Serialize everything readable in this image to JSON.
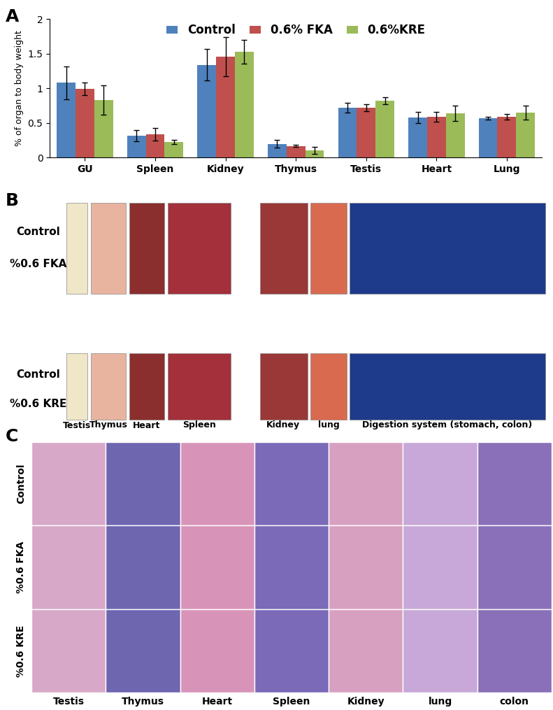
{
  "chart_data": {
    "type": "bar",
    "categories": [
      "GU",
      "Spleen",
      "Kidney",
      "Thymus",
      "Testis",
      "Heart",
      "Lung"
    ],
    "y_label": "% of organ to body weight",
    "ylim": [
      0,
      2
    ],
    "yticks": [
      0,
      0.5,
      1,
      1.5,
      2
    ],
    "grid": false,
    "legend": "upper center",
    "series": [
      {
        "name": "Control",
        "color": "#4f81bd",
        "values": [
          1.08,
          0.32,
          1.34,
          0.2,
          0.72,
          0.58,
          0.57
        ],
        "errors": [
          0.24,
          0.08,
          0.23,
          0.06,
          0.07,
          0.08,
          0.02
        ]
      },
      {
        "name": "0.6% FKA",
        "color": "#c0504d",
        "values": [
          0.99,
          0.34,
          1.46,
          0.17,
          0.72,
          0.59,
          0.59
        ],
        "errors": [
          0.09,
          0.09,
          0.28,
          0.02,
          0.05,
          0.07,
          0.04
        ]
      },
      {
        "name": "0.6%KRE",
        "color": "#9bbb59",
        "values": [
          0.83,
          0.23,
          1.53,
          0.1,
          0.82,
          0.64,
          0.65
        ],
        "errors": [
          0.21,
          0.03,
          0.17,
          0.05,
          0.05,
          0.11,
          0.1
        ]
      }
    ]
  },
  "panel_labels": [
    "A",
    "B",
    "C"
  ],
  "panel_B": {
    "row_labels": [
      "Control",
      "%0.6 FKA",
      "Control",
      "%0.6 KRE"
    ],
    "column_labels": [
      "Testis",
      "Thymus",
      "Heart",
      "Spleen",
      "Kidney",
      "lung",
      "Digestion system (stomach, colon)"
    ]
  },
  "panel_C": {
    "row_labels": [
      "Control",
      "%0.6 FKA",
      "%0.6 KRE"
    ],
    "column_labels": [
      "Testis",
      "Thymus",
      "Heart",
      "Spleen",
      "Kidney",
      "lung",
      "colon"
    ]
  }
}
